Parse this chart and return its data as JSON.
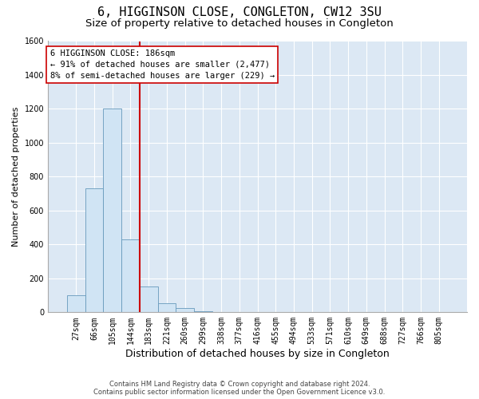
{
  "title": "6, HIGGINSON CLOSE, CONGLETON, CW12 3SU",
  "subtitle": "Size of property relative to detached houses in Congleton",
  "xlabel": "Distribution of detached houses by size in Congleton",
  "ylabel": "Number of detached properties",
  "bar_labels": [
    "27sqm",
    "66sqm",
    "105sqm",
    "144sqm",
    "183sqm",
    "221sqm",
    "260sqm",
    "299sqm",
    "338sqm",
    "377sqm",
    "416sqm",
    "455sqm",
    "494sqm",
    "533sqm",
    "571sqm",
    "610sqm",
    "649sqm",
    "688sqm",
    "727sqm",
    "766sqm",
    "805sqm"
  ],
  "bar_values": [
    100,
    730,
    1200,
    430,
    150,
    55,
    25,
    5,
    0,
    0,
    0,
    0,
    0,
    0,
    0,
    0,
    0,
    0,
    0,
    0,
    0
  ],
  "bar_color": "#d0e4f4",
  "bar_edge_color": "#6699bb",
  "vline_color": "#cc0000",
  "vline_position": 3.5,
  "annotation_text": "6 HIGGINSON CLOSE: 186sqm\n← 91% of detached houses are smaller (2,477)\n8% of semi-detached houses are larger (229) →",
  "annotation_box_edgecolor": "#cc0000",
  "ylim_max": 1600,
  "yticks": [
    0,
    200,
    400,
    600,
    800,
    1000,
    1200,
    1400,
    1600
  ],
  "footnote1": "Contains HM Land Registry data © Crown copyright and database right 2024.",
  "footnote2": "Contains public sector information licensed under the Open Government Licence v3.0.",
  "plot_bg_color": "#dce8f4",
  "grid_color": "#ffffff",
  "title_fontsize": 11,
  "subtitle_fontsize": 9.5,
  "tick_fontsize": 7,
  "ylabel_fontsize": 8,
  "xlabel_fontsize": 9,
  "footnote_fontsize": 6,
  "annotation_fontsize": 7.5
}
